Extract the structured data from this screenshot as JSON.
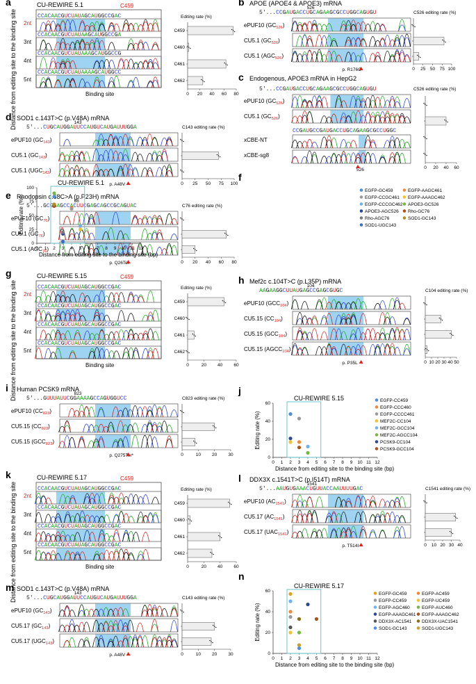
{
  "colors": {
    "A": "#1aa81a",
    "C": "#2b3fd6",
    "G": "#111111",
    "U": "#d62020",
    "T": "#d62020",
    "highlight": "#7ec4ee",
    "red": "#e0201b",
    "box": "#5bc0c8"
  },
  "panels": [
    {
      "id": "a",
      "letter": "a",
      "title": "CU-REWIRE 5.1",
      "seq": "CCACAACGUCUAUAGCAUGGCCGAC",
      "hl": [
        5,
        14
      ],
      "target": "C459",
      "rows": [
        "2nt",
        "3nt",
        "4nt",
        "5nt"
      ],
      "rowseqs": [
        "CCACAACGUCUAUAGCAUGGCCGAC",
        "CCACAACGUCUAUAAGCAUGGCCGA",
        "CCACAACGUCUAUAAAGCAUGGCCG",
        "CCACAACGUCUAUAAAAGCAUGGCC"
      ],
      "ylabel": "Distance from  editing site to the binding site",
      "xlabel": "Binding site",
      "bar_title": "Editing rate (%)",
      "bar_labels": [
        "C459",
        "C460",
        "C461",
        "C462"
      ],
      "bar_values": [
        75,
        2,
        63,
        25
      ],
      "bar_max": 80,
      "ticks": [
        "0",
        "20",
        "40",
        "60",
        "80"
      ]
    },
    {
      "id": "b",
      "letter": "b",
      "title": "APOE (APOE4 & APOE3) mRNA",
      "seq": "5′...CCGAUGACCUGCAGAAGCGCCUGGCAGUGU",
      "pos": "526",
      "rows": [
        "ePUF10 (GC526)",
        "CU5.1 (GC526)",
        "CU5.1 (AGC526)"
      ],
      "bar_title": "C526 editing rate (%)",
      "bar_values": [
        0,
        80,
        14
      ],
      "bar_max": 100,
      "ticks": [
        "0",
        "25",
        "50",
        "75",
        "100"
      ],
      "mutation": "p. R176C"
    },
    {
      "id": "c",
      "letter": "c",
      "title": "Endogenous, APOE3 mRNA in HepG2",
      "seq": "5′...CCGAUGACCUGCAGAAGCGCCUGGCAGUGU",
      "seq2": "CCGAUGCCGAUGACCUGCAGAAGCGCCUGGC",
      "rows": [
        "ePUF10 (GC526)",
        "CU5.1 (GC526)"
      ],
      "rows2": [
        "xCBE-NT",
        "xCBE-sg8"
      ],
      "bar_title": "C526 editing rate (%)",
      "bar_values": [
        0,
        40,
        0,
        0
      ],
      "bar_max": 60,
      "ticks": [
        "0",
        "20",
        "40",
        "60"
      ],
      "pos2": "526"
    },
    {
      "id": "d",
      "letter": "d",
      "title": "SOD1 c.143T>C (p.V48A) mRNA",
      "seq": "5′...CUGCAUGGAUUCCAUGUCAUGAUUUGGA",
      "pos": "143",
      "rows": [
        "ePUF10 (GC143)",
        "CU5.1 (GC143)",
        "CU5.1 (UGC143)"
      ],
      "bar_title": "C143 editing rate (%)",
      "bar_values": [
        0,
        70,
        0
      ],
      "bar_max": 100,
      "ticks": [
        "0",
        "25",
        "50",
        "75",
        "100"
      ],
      "mutation": "p. A48V"
    },
    {
      "id": "e",
      "letter": "e",
      "title": "Rhodopsin c.68C>A (p.P23H) mRNA",
      "seq": "5′...GCGGAGCCACUUCGAGCAGCCGCAGUAC",
      "pos": "68",
      "pos_b": "76",
      "rows": [
        "ePUF10 (GC76)",
        "CU5.1 (GC76)",
        "CU5.1 (AGC76)"
      ],
      "bar_title": "C76 editing rate (%)",
      "bar_values": [
        0,
        68,
        20
      ],
      "bar_max": 80,
      "ticks": [
        "0",
        "20",
        "40",
        "60",
        "80"
      ],
      "mutation": "p. Q26Ter"
    },
    {
      "id": "g",
      "letter": "g",
      "title": "CU-REWIRE 5.15",
      "target": "C459",
      "rows": [
        "2nt",
        "3nt",
        "4nt",
        "5nt"
      ],
      "ylabel": "Distance from  editing site to the binding site",
      "xlabel": "Binding site",
      "bar_title": "Editing rate (%)",
      "bar_labels": [
        "C459",
        "C460",
        "C461",
        "C462"
      ],
      "bar_values": [
        45,
        0,
        8,
        0
      ],
      "bar_max": 60,
      "ticks": [
        "0",
        "20",
        "40",
        "60"
      ]
    },
    {
      "id": "h",
      "letter": "h",
      "title": "Mef2c c.104T>C (p.L35P) mRNA",
      "seq": "AAGAAGGCUUAUGAGCCGAGCGUGC",
      "pos": "104",
      "rows": [
        "ePUF10 (GCC104)",
        "CU5.15 (CC104)",
        "CU5.15 (GCC104)",
        "CU5.15 (AGCC104)"
      ],
      "bar_title": "C104 editing rate (%)",
      "bar_values": [
        0,
        25,
        42,
        3
      ],
      "bar_max": 50,
      "ticks": [
        "0",
        "10",
        "20",
        "30",
        "40",
        "50"
      ],
      "mutation": "p. P35L"
    },
    {
      "id": "i",
      "letter": "i",
      "title": "Human PCSK9 mRNA",
      "seq": "5′...GUUUAUUCGGAAAAGCCAGUGGUCC",
      "pos": "823",
      "rows": [
        "ePUF10 (CC823)",
        "CU5.15 (CC823)",
        "CU5.15 (GCC823)"
      ],
      "bar_title": "C823 editing rate (%)",
      "bar_values": [
        0,
        20,
        8
      ],
      "bar_max": 30,
      "ticks": [
        "0",
        "10",
        "20",
        "30"
      ],
      "mutation": "p. Q275Ter*"
    },
    {
      "id": "k",
      "letter": "k",
      "title": "CU-REWIRE 5.17",
      "target": "C459",
      "rows": [
        "2nt",
        "3nt",
        "4nt",
        "5nt"
      ],
      "ylabel": "Distance from  editing site to the binding site",
      "xlabel": "Binding site",
      "bar_title": "Editing rate (%)",
      "bar_labels": [
        "C459",
        "C460",
        "C461",
        "C462"
      ],
      "bar_values": [
        52,
        3,
        40,
        30
      ],
      "bar_max": 60,
      "ticks": [
        "0",
        "20",
        "40",
        "60"
      ]
    },
    {
      "id": "l",
      "letter": "l",
      "title": "DDX3X c.1541T>C (p.I514T) mRNA",
      "seq": "5′...AAUGUGAAACUGUUACCAAUUUUGAC",
      "pos": "1541",
      "rows": [
        "ePUF10 (AC1541)",
        "CU5.17 (AC1541)",
        "CU5.17 (UAC1541)"
      ],
      "bar_title": "C1541 editing rate (%)",
      "bar_values": [
        0,
        35,
        30
      ],
      "bar_max": 40,
      "ticks": [
        "0",
        "10",
        "20",
        "30",
        "40"
      ],
      "mutation": "p. T514I"
    },
    {
      "id": "m",
      "letter": "m",
      "title": "SOD1 c.143T>C (p.V48A) mRNA",
      "seq": "5′...CUGCAUGGAUUCCAUGUCAUGAUUUGGA",
      "pos": "143",
      "rows": [
        "ePUF10 (GC143)",
        "CU5.17 (GC143)",
        "CU5.17 (UGC143)"
      ],
      "bar_title": "C143 editing rate (%)",
      "bar_values": [
        0,
        20,
        18
      ],
      "bar_max": 30,
      "ticks": [
        "0",
        "10",
        "20",
        "30"
      ],
      "mutation": "p. A48V"
    }
  ],
  "chart_data": [
    {
      "id": "f",
      "type": "scatter",
      "title": "CU-REWIRE 5.1",
      "xlabel": "Distance from  editing  site to the binding site (bp)",
      "ylabel": "Editing rate (%)",
      "xlim": [
        0,
        12
      ],
      "ylim": [
        0,
        100
      ],
      "xticks": [
        0,
        1,
        2,
        3,
        4,
        5,
        6,
        7,
        8,
        9,
        10,
        11,
        12
      ],
      "yticks": [
        0,
        25,
        50,
        75,
        100
      ],
      "series": [
        {
          "name": "EGFP-GC459",
          "color": "#4f8ed8",
          "x": 2,
          "y": 84
        },
        {
          "name": "EGFP-AAGC461",
          "color": "#f08a3b",
          "x": 4,
          "y": 64
        },
        {
          "name": "EGFP-CCGC461",
          "color": "#9a9a9a",
          "x": 4,
          "y": 62
        },
        {
          "name": "EGFP-AAAGC462",
          "color": "#f2c12e",
          "x": 5,
          "y": 25
        },
        {
          "name": "EGFP-CCCGC462",
          "color": "#6cb3e8",
          "x": 5,
          "y": 31
        },
        {
          "name": "APOE3-GC526",
          "color": "#77b843",
          "x": 2,
          "y": 90
        },
        {
          "name": "APOE3-AGC526",
          "color": "#2c4a8f",
          "x": 3,
          "y": 17
        },
        {
          "name": "Rho-GC76",
          "color": "#a8541e",
          "x": 2,
          "y": 67
        },
        {
          "name": "Rho-AGC76",
          "color": "#7c7c7c",
          "x": 3,
          "y": 20
        },
        {
          "name": "SOD1-GC143",
          "color": "#b08f1e",
          "x": 2,
          "y": 70
        },
        {
          "name": "SOD1-UGC143",
          "color": "#3d6ec6",
          "x": 3,
          "y": 3
        }
      ],
      "legend": [
        "EGFP-GC459",
        "EGFP-AAGC461",
        "EGFP-CCGC461",
        "EGFP-AAAGC462",
        "EGFP-CCCGC462",
        "APOE3-GC526",
        "APOE3-AGC526",
        "Rho-GC76",
        "Rho-AGC76",
        "SOD1-GC143",
        "SOD1-UGC143"
      ]
    },
    {
      "id": "j",
      "type": "scatter",
      "title": "CU-REWIRE 5.15",
      "xlabel": "Distance from  editing  site to the binding site (bp)",
      "ylabel": "Editing rate (%)",
      "xlim": [
        0,
        12
      ],
      "ylim": [
        0,
        60
      ],
      "xticks": [
        0,
        1,
        2,
        3,
        4,
        5,
        6,
        7,
        8,
        9,
        10,
        11,
        12
      ],
      "yticks": [
        0,
        20,
        40,
        60
      ],
      "series": [
        {
          "name": "EGFP-CC459",
          "color": "#4f8ed8",
          "x": 2,
          "y": 48
        },
        {
          "name": "EGFP-CCC460",
          "color": "#f08a3b",
          "x": 3,
          "y": 17
        },
        {
          "name": "EGFP-CCCC461",
          "color": "#9a9a9a",
          "x": 3,
          "y": 43
        },
        {
          "name": "MEF2C-CC104",
          "color": "#f2c12e",
          "x": 2,
          "y": 17
        },
        {
          "name": "MEF2C-GCC104",
          "color": "#6cb3e8",
          "x": 4,
          "y": 12
        },
        {
          "name": "MEF2C-AGCC104",
          "color": "#77b843",
          "x": 4,
          "y": 5
        },
        {
          "name": "PCSK9-CC104",
          "color": "#2c4a8f",
          "x": 2,
          "y": 21
        },
        {
          "name": "PCSK9-GCC104",
          "color": "#a8541e",
          "x": 3,
          "y": 11
        }
      ],
      "legend": [
        "EGFP-CC459",
        "EGFP-CCC460",
        "EGFP-CCCC461",
        "MEF2C-CC104",
        "MEF2C-GCC104",
        "MEF2C-AGCC104",
        "PCSK9-CC104",
        "PCSK9-GCC104"
      ]
    },
    {
      "id": "n",
      "type": "scatter",
      "title": "CU-REWIRE 5.17",
      "xlabel": "Distance from  editing  site to the binding site (bp)",
      "ylabel": "Editing rate (%)",
      "xlim": [
        0,
        12
      ],
      "ylim": [
        0,
        60
      ],
      "xticks": [
        0,
        1,
        2,
        3,
        4,
        5,
        6,
        7,
        8,
        9,
        10,
        11,
        12
      ],
      "yticks": [
        0,
        20,
        40,
        60
      ],
      "series": [
        {
          "name": "EGFP-GC459",
          "color": "#e0a020",
          "x": 2,
          "y": 57
        },
        {
          "name": "EGFP-AC459",
          "color": "#f08a3b",
          "x": 2,
          "y": 40
        },
        {
          "name": "EGFP-CC459",
          "color": "#9a9a9a",
          "x": 2,
          "y": 35
        },
        {
          "name": "EGFP-UC459",
          "color": "#f2c12e",
          "x": 2,
          "y": 20
        },
        {
          "name": "EGFP-AGC460",
          "color": "#6cb3e8",
          "x": 2,
          "y": 50
        },
        {
          "name": "EGFP-AUC460",
          "color": "#77b843",
          "x": 3,
          "y": 20
        },
        {
          "name": "EGFP-AAAGC461",
          "color": "#2c4a8f",
          "x": 4,
          "y": 47
        },
        {
          "name": "EGFP-AAAGC462",
          "color": "#a8541e",
          "x": 5,
          "y": 33
        },
        {
          "name": "DDX3X-AC1541",
          "color": "#555555",
          "x": 2,
          "y": 25
        },
        {
          "name": "DDX3X-UAC1541",
          "color": "#8a6d1e",
          "x": 3,
          "y": 33
        },
        {
          "name": "SOD1-GC143",
          "color": "#4f8ed8",
          "x": 3,
          "y": 5
        },
        {
          "name": "SOD1-UGC143",
          "color": "#c6a030",
          "x": 3,
          "y": 8
        }
      ],
      "legend": [
        "EGFP-GC459",
        "EGFP-AC459",
        "EGFP-CC459",
        "EGFP-UC459",
        "EGFP-AGC460",
        "EGFP-AUC460",
        "EGFP-AAAGC461",
        "EGFP-AAAGC462",
        "DDX3X-AC1541",
        "DDX3X-UAC1541",
        "SOD1-GC143",
        "SOD1-UGC143"
      ]
    }
  ]
}
